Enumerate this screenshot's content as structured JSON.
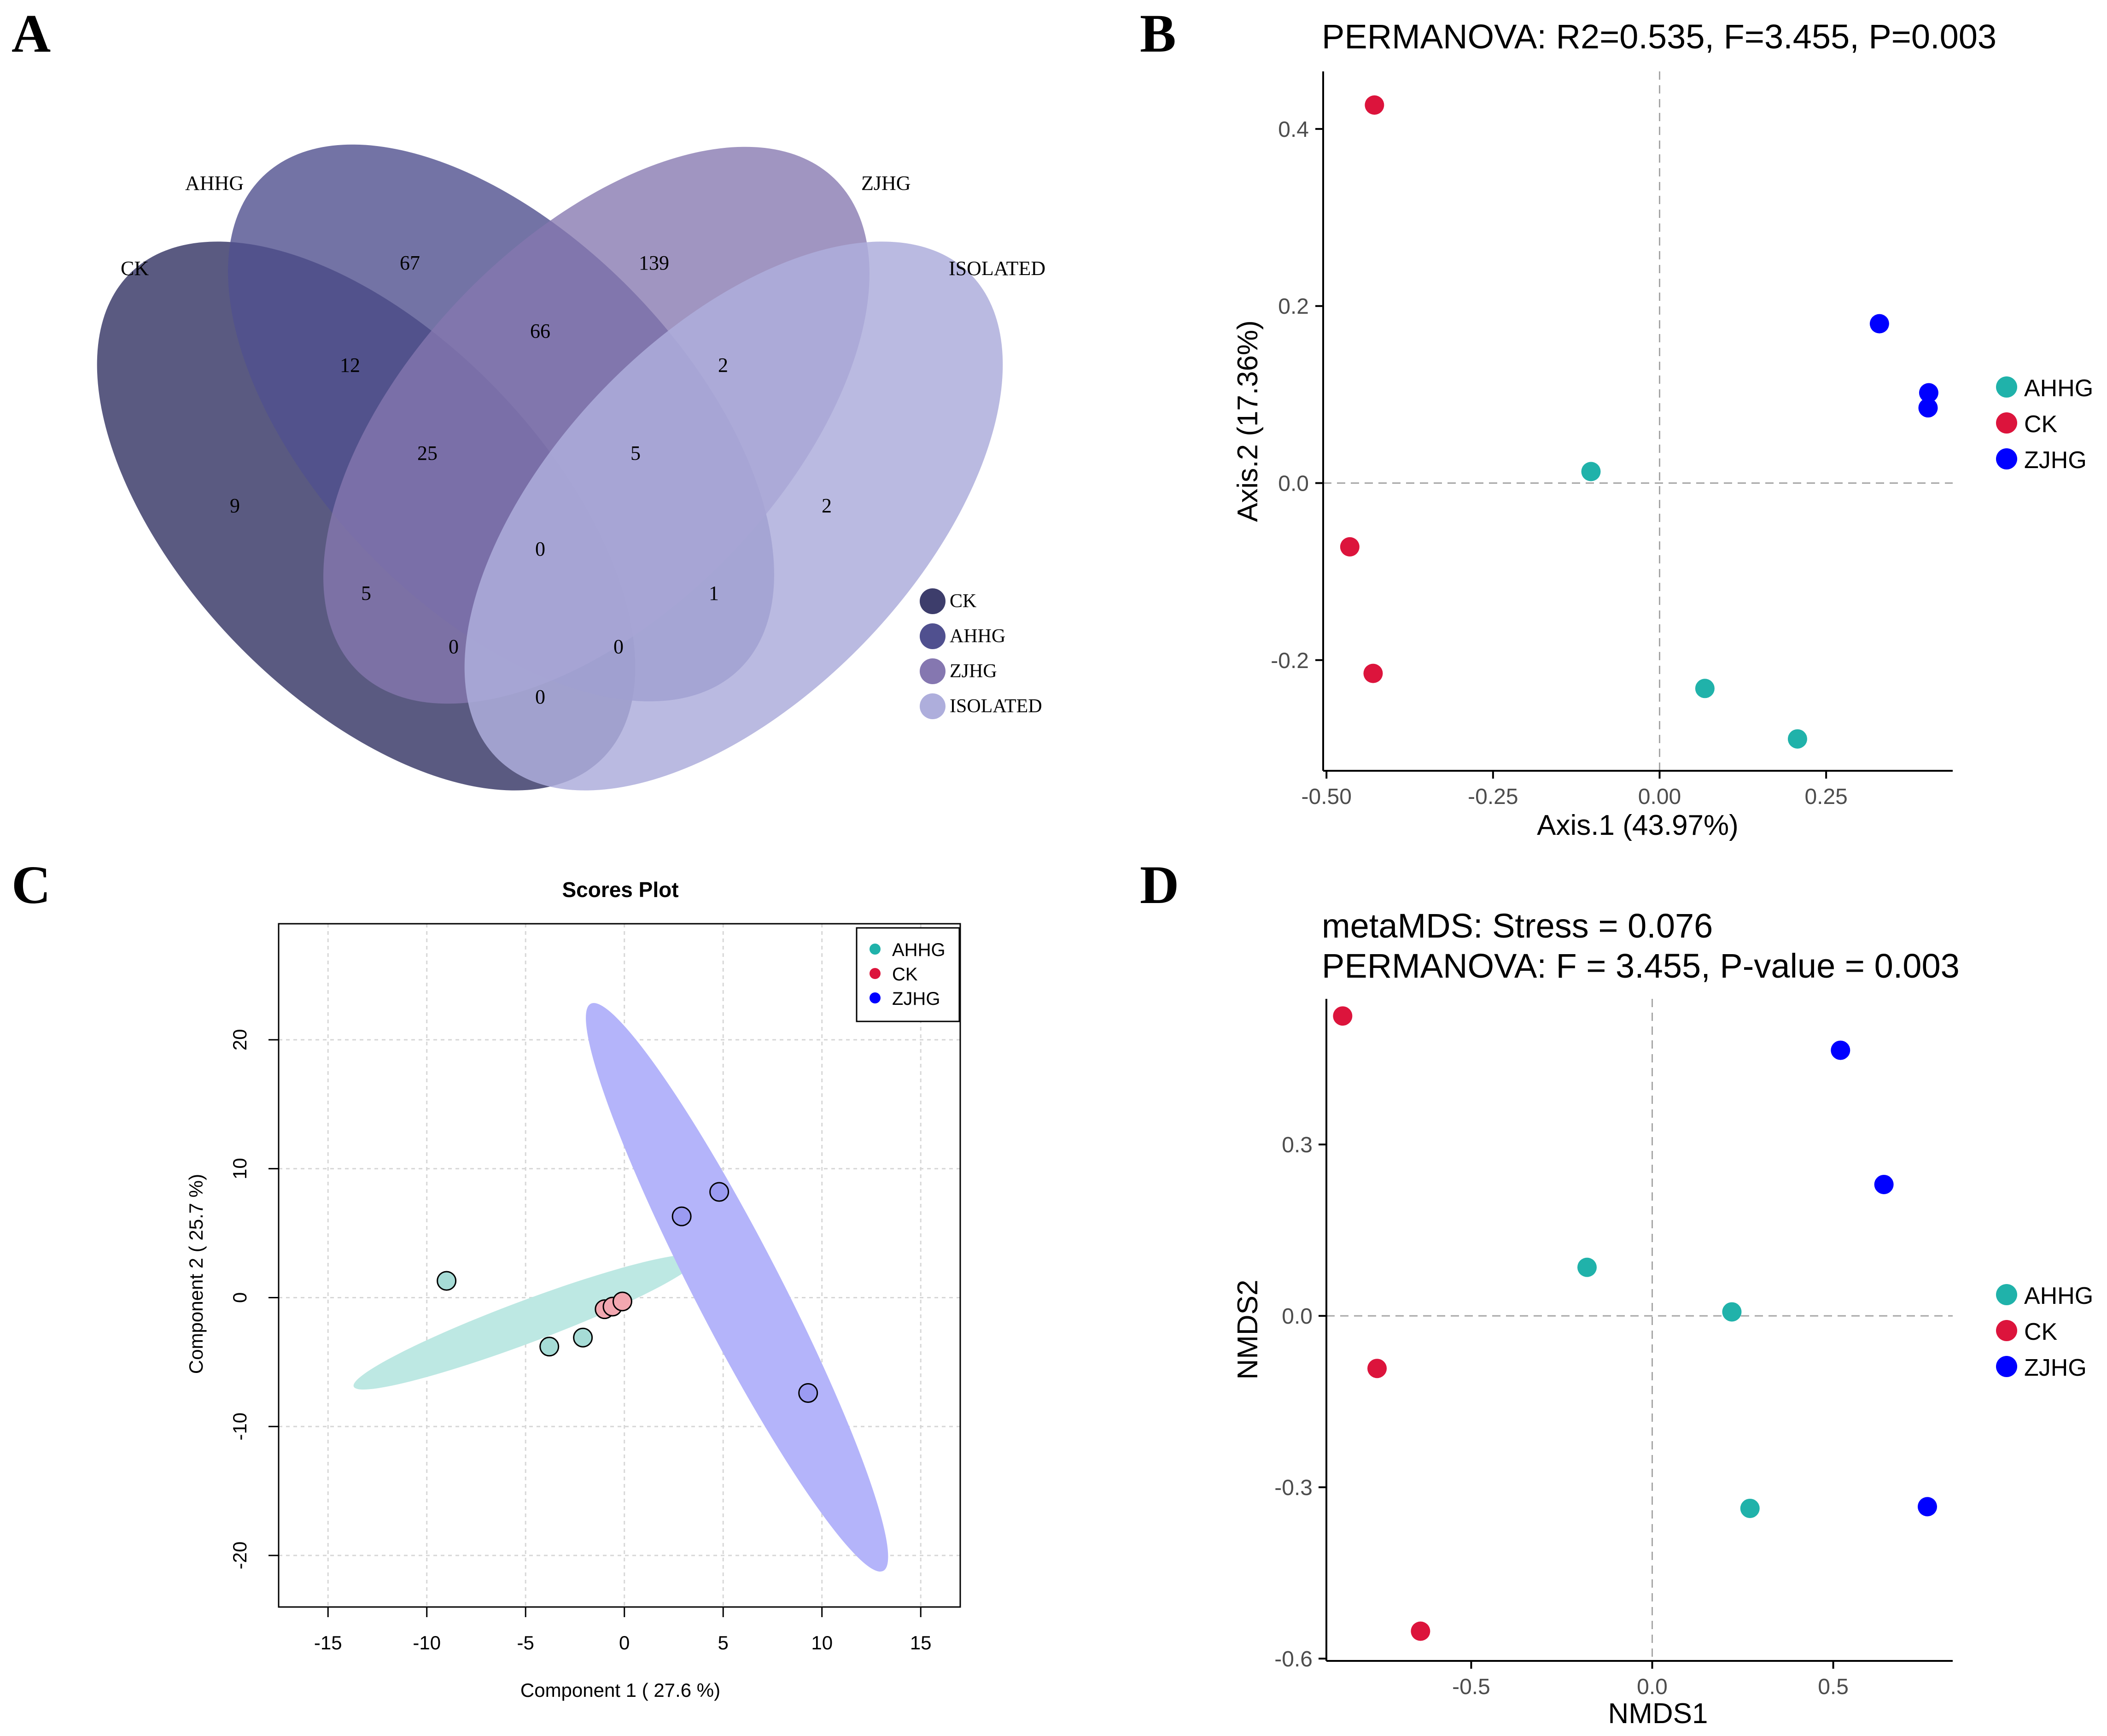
{
  "colors": {
    "ahhg": "#20B2AA",
    "ck": "#DC143C",
    "zjhg": "#0000FF",
    "venn_ck": "#3d3d6b",
    "venn_ahhg": "#50508f",
    "venn_zjhg": "#8577b0",
    "venn_isolated": "#aeaedc",
    "ell_ahhg": "#bde8e3",
    "ell_zjhg": "#b4b4fa",
    "c_ahhg_fill": "#a6dcd6",
    "c_ck_fill": "#f2a7b0",
    "c_zjhg_fill": "#9b9bf2",
    "grid": "#d7d7d7",
    "axis": "#000000",
    "tick_text": "#4d4d4d"
  },
  "panels": {
    "a": "A",
    "b": "B",
    "c": "C",
    "d": "D"
  },
  "chart_data": [
    {
      "panel": "A",
      "type": "venn",
      "sets": [
        "CK",
        "AHHG",
        "ZJHG",
        "ISOLATED"
      ],
      "ellipse_labels": [
        "CK",
        "AHHG",
        "ZJHG",
        "ISOLATED"
      ],
      "legend": [
        "CK",
        "AHHG",
        "ZJHG",
        "ISOLATED"
      ],
      "regions": [
        {
          "sets": [
            "CK"
          ],
          "value": 9
        },
        {
          "sets": [
            "AHHG"
          ],
          "value": 67
        },
        {
          "sets": [
            "ZJHG"
          ],
          "value": 139
        },
        {
          "sets": [
            "ISOLATED"
          ],
          "value": 2
        },
        {
          "sets": [
            "CK",
            "AHHG"
          ],
          "value": 12
        },
        {
          "sets": [
            "AHHG",
            "ZJHG"
          ],
          "value": 66
        },
        {
          "sets": [
            "ZJHG",
            "ISOLATED"
          ],
          "value": 2
        },
        {
          "sets": [
            "CK",
            "AHHG",
            "ZJHG"
          ],
          "value": 25
        },
        {
          "sets": [
            "AHHG",
            "ZJHG",
            "ISOLATED"
          ],
          "value": 5
        },
        {
          "sets": [
            "CK",
            "AHHG",
            "ZJHG",
            "ISOLATED"
          ],
          "value": 0
        },
        {
          "sets": [
            "CK",
            "ZJHG"
          ],
          "value": 5
        },
        {
          "sets": [
            "AHHG",
            "ISOLATED"
          ],
          "value": 1
        },
        {
          "sets": [
            "CK",
            "ZJHG",
            "ISOLATED"
          ],
          "value": 0
        },
        {
          "sets": [
            "CK",
            "AHHG",
            "ISOLATED"
          ],
          "value": 0
        },
        {
          "sets": [
            "CK",
            "ISOLATED"
          ],
          "value": 0
        }
      ]
    },
    {
      "panel": "B",
      "type": "scatter",
      "title": "PERMANOVA: R2=0.535, F=3.455, P=0.003",
      "xlabel": "Axis.1 (43.97%)",
      "ylabel": "Axis.2 (17.36%)",
      "xlim": [
        -0.505,
        0.44
      ],
      "ylim": [
        -0.325,
        0.465
      ],
      "xticks": [
        -0.5,
        -0.25,
        0.0,
        0.25
      ],
      "xtick_labels": [
        "-0.50",
        "-0.25",
        "0.00",
        "0.25"
      ],
      "yticks": [
        -0.2,
        0.0,
        0.2,
        0.4
      ],
      "ytick_labels": [
        "-0.2",
        "0.0",
        "0.2",
        "0.4"
      ],
      "legend": [
        "AHHG",
        "CK",
        "ZJHG"
      ],
      "series": [
        {
          "name": "AHHG",
          "points": [
            [
              -0.103,
              0.013
            ],
            [
              0.068,
              -0.232
            ],
            [
              0.207,
              -0.289
            ]
          ]
        },
        {
          "name": "CK",
          "points": [
            [
              -0.428,
              0.427
            ],
            [
              -0.465,
              -0.072
            ],
            [
              -0.43,
              -0.215
            ]
          ]
        },
        {
          "name": "ZJHG",
          "points": [
            [
              0.33,
              0.18
            ],
            [
              0.404,
              0.102
            ],
            [
              0.403,
              0.085
            ]
          ]
        }
      ]
    },
    {
      "panel": "C",
      "type": "scatter",
      "title": "Scores Plot",
      "xlabel": "Component 1 ( 27.6 %)",
      "ylabel": "Component 2 ( 25.7 %)",
      "xlim": [
        -17.5,
        17.0
      ],
      "ylim": [
        -24.0,
        29.0
      ],
      "xticks": [
        -15,
        -10,
        -5,
        0,
        5,
        10,
        15
      ],
      "xtick_labels": [
        "-15",
        "-10",
        "-5",
        "0",
        "5",
        "10",
        "15"
      ],
      "yticks": [
        -20,
        -10,
        0,
        10,
        20
      ],
      "ytick_labels": [
        "-20",
        "-10",
        "0",
        "10",
        "20"
      ],
      "legend": [
        "AHHG",
        "CK",
        "ZJHG"
      ],
      "series": [
        {
          "name": "AHHG",
          "points": [
            [
              -9.0,
              1.3
            ],
            [
              -3.8,
              -3.8
            ],
            [
              -2.1,
              -3.1
            ]
          ]
        },
        {
          "name": "CK",
          "points": [
            [
              -1.0,
              -0.9
            ],
            [
              -0.6,
              -0.7
            ],
            [
              -0.1,
              -0.3
            ]
          ]
        },
        {
          "name": "ZJHG",
          "points": [
            [
              2.9,
              6.3
            ],
            [
              4.8,
              8.2
            ],
            [
              9.3,
              -7.4
            ]
          ]
        }
      ],
      "ellipses": [
        {
          "name": "AHHG",
          "center": [
            -5.0,
            -1.9
          ],
          "semi_major_x": 8.7,
          "semi_major_y": 5.0,
          "minor_scale": 0.115
        },
        {
          "name": "ZJHG",
          "center": [
            5.7,
            0.8
          ],
          "semi_major_x": 7.4,
          "semi_major_y": -22.0,
          "minor_scale": 0.135
        }
      ]
    },
    {
      "panel": "D",
      "type": "scatter",
      "title_lines": [
        "metaMDS: Stress = 0.076",
        "PERMANOVA: F = 3.455, P-value = 0.003"
      ],
      "xlabel": "NMDS1",
      "ylabel": "NMDS2",
      "xlim": [
        -0.9,
        0.83
      ],
      "ylim": [
        -0.604,
        0.555
      ],
      "xticks": [
        -0.5,
        0.0,
        0.5
      ],
      "xtick_labels": [
        "-0.5",
        "0.0",
        "0.5"
      ],
      "yticks": [
        -0.6,
        -0.3,
        0.0,
        0.3
      ],
      "ytick_labels": [
        "-0.6",
        "-0.3",
        "0.0",
        "0.3"
      ],
      "legend": [
        "AHHG",
        "CK",
        "ZJHG"
      ],
      "series": [
        {
          "name": "AHHG",
          "points": [
            [
              -0.18,
              0.085
            ],
            [
              0.22,
              0.007
            ],
            [
              0.27,
              -0.337
            ]
          ]
        },
        {
          "name": "CK",
          "points": [
            [
              -0.855,
              0.525
            ],
            [
              -0.76,
              -0.092
            ],
            [
              -0.64,
              -0.552
            ]
          ]
        },
        {
          "name": "ZJHG",
          "points": [
            [
              0.52,
              0.465
            ],
            [
              0.64,
              0.23
            ],
            [
              0.76,
              -0.334
            ]
          ]
        }
      ]
    }
  ]
}
